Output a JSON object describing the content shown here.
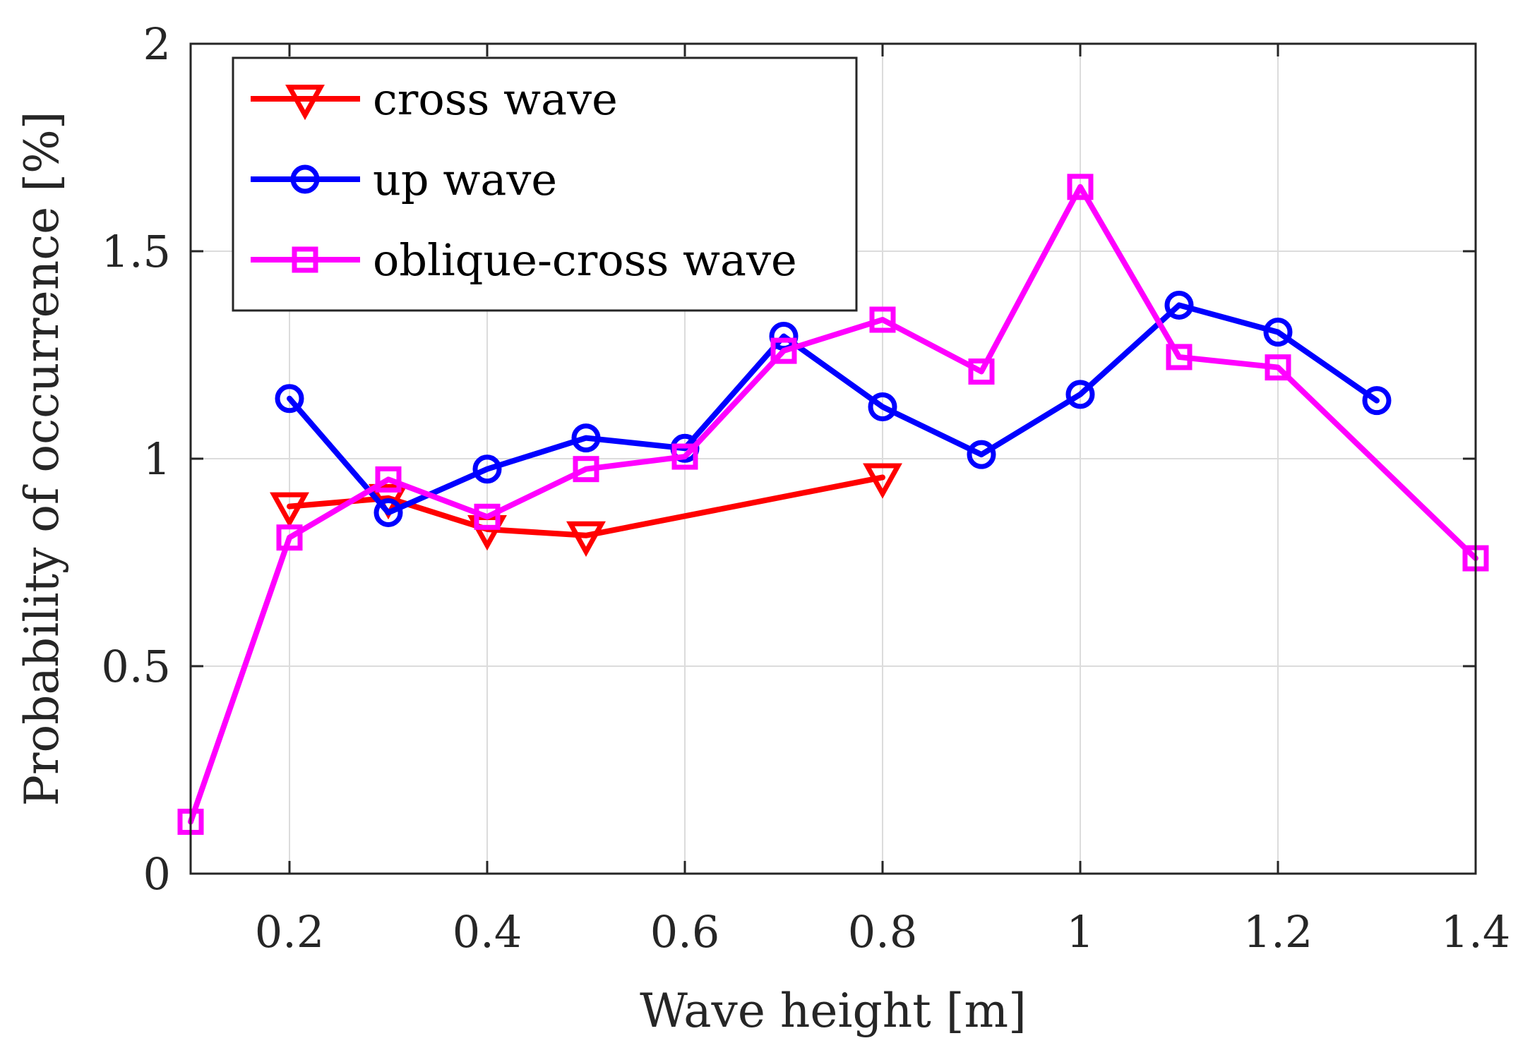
{
  "chart_data": {
    "type": "line",
    "title": "",
    "xlabel": "Wave height [m]",
    "ylabel": "Probability of occurrence [%]",
    "xlim": [
      0.1,
      1.4
    ],
    "ylim": [
      0,
      2
    ],
    "xticks": [
      0.2,
      0.4,
      0.6,
      0.8,
      1.0,
      1.2,
      1.4
    ],
    "xtick_labels": [
      "0.2",
      "0.4",
      "0.6",
      "0.8",
      "1",
      "1.2",
      "1.4"
    ],
    "yticks": [
      0,
      0.5,
      1.0,
      1.5,
      2.0
    ],
    "ytick_labels": [
      "0",
      "0.5",
      "1",
      "1.5",
      "2"
    ],
    "grid": true,
    "legend_position": "top-left",
    "series": [
      {
        "name": "cross wave",
        "color": "#ff0000",
        "marker": "triangle-down",
        "x": [
          0.2,
          0.3,
          0.4,
          0.5,
          0.8
        ],
        "y": [
          0.885,
          0.905,
          0.83,
          0.815,
          0.955
        ]
      },
      {
        "name": "up wave",
        "color": "#0000ff",
        "marker": "circle",
        "x": [
          0.2,
          0.3,
          0.4,
          0.5,
          0.6,
          0.7,
          0.8,
          0.9,
          1.0,
          1.1,
          1.2,
          1.3
        ],
        "y": [
          1.145,
          0.87,
          0.975,
          1.05,
          1.025,
          1.295,
          1.125,
          1.01,
          1.155,
          1.37,
          1.305,
          1.14
        ]
      },
      {
        "name": "oblique-cross wave",
        "color": "#ff00ff",
        "marker": "square",
        "x": [
          0.1,
          0.2,
          0.3,
          0.4,
          0.5,
          0.6,
          0.7,
          0.8,
          0.9,
          1.0,
          1.1,
          1.2,
          1.4
        ],
        "y": [
          0.125,
          0.81,
          0.95,
          0.86,
          0.975,
          1.005,
          1.26,
          1.335,
          1.21,
          1.655,
          1.245,
          1.22,
          0.76
        ]
      }
    ]
  }
}
